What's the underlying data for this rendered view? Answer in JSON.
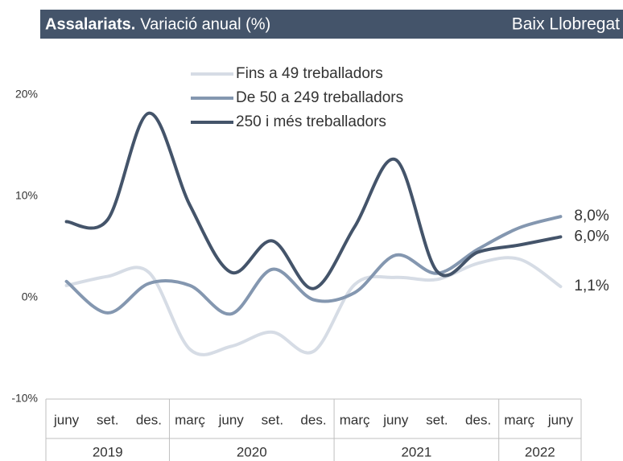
{
  "chart_data": {
    "type": "line",
    "title": "Assalariats.",
    "subtitle": "Variació anual (%)",
    "region": "Baix Llobregat",
    "categories": [
      "juny",
      "set.",
      "des.",
      "març",
      "juny",
      "set.",
      "des.",
      "març",
      "juny",
      "set.",
      "des.",
      "març",
      "juny"
    ],
    "groups": [
      {
        "label": "2019",
        "count": 3
      },
      {
        "label": "2020",
        "count": 4
      },
      {
        "label": "2021",
        "count": 4
      },
      {
        "label": "2022",
        "count": 2
      }
    ],
    "series": [
      {
        "name": "Fins a 49 treballadors",
        "color": "#d6dce5",
        "values": [
          1.2,
          2.1,
          2.5,
          -5.1,
          -4.8,
          -3.4,
          -5.3,
          1.3,
          2.0,
          1.8,
          3.4,
          3.8,
          1.1
        ],
        "value_labels": [
          null,
          null,
          null,
          null,
          null,
          null,
          null,
          null,
          null,
          null,
          null,
          null,
          "1,1%"
        ]
      },
      {
        "name": "De 50 a 249 treballadors",
        "color": "#8497b0",
        "values": [
          1.6,
          -1.5,
          1.4,
          1.2,
          -1.6,
          2.8,
          -0.2,
          0.5,
          4.2,
          2.4,
          4.8,
          6.9,
          8.0
        ],
        "value_labels": [
          null,
          null,
          null,
          null,
          null,
          null,
          null,
          null,
          null,
          null,
          null,
          null,
          "8,0%"
        ]
      },
      {
        "name": "250 i més treballadors",
        "color": "#44546a",
        "values": [
          7.5,
          7.7,
          18.2,
          9.1,
          2.5,
          5.6,
          0.9,
          7.0,
          13.6,
          2.6,
          4.5,
          5.2,
          6.0
        ],
        "value_labels": [
          null,
          null,
          null,
          null,
          null,
          null,
          null,
          null,
          null,
          null,
          null,
          null,
          "6,0%"
        ]
      }
    ],
    "ylim": [
      -10,
      20
    ],
    "yticks": [
      {
        "value": -10,
        "label": "-10%"
      },
      {
        "value": 0,
        "label": "0%"
      },
      {
        "value": 10,
        "label": "10%"
      },
      {
        "value": 20,
        "label": "20%"
      }
    ],
    "grid": false
  }
}
